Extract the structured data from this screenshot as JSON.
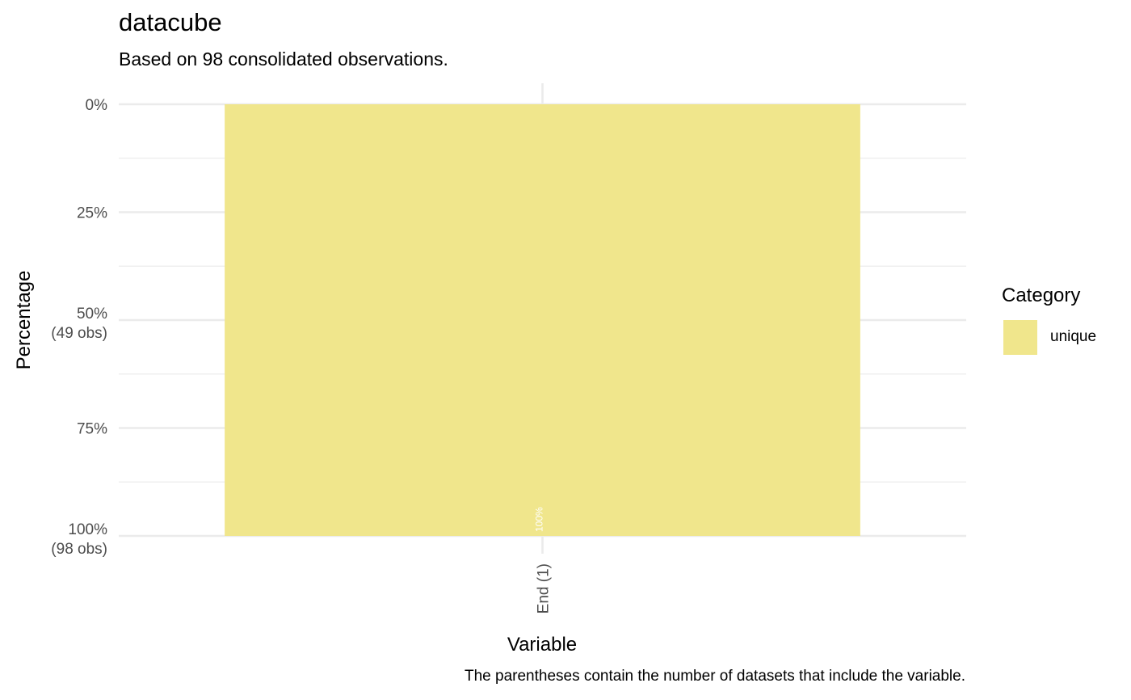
{
  "chart_data": {
    "type": "bar",
    "title": "datacube",
    "subtitle": "Based on 98 consolidated observations.",
    "xlabel": "Variable",
    "ylabel": "Percentage",
    "caption": "The parentheses contain the number of datasets that include the variable.",
    "categories": [
      "End (1)"
    ],
    "series": [
      {
        "name": "unique",
        "values": [
          100
        ],
        "color": "#f0e68c"
      }
    ],
    "y_axis_reversed": true,
    "ylim": [
      0,
      100
    ],
    "yticks": [
      {
        "value": 0,
        "label": "0%",
        "sublabel": ""
      },
      {
        "value": 25,
        "label": "25%",
        "sublabel": ""
      },
      {
        "value": 50,
        "label": "50%",
        "sublabel": "(49 obs)"
      },
      {
        "value": 75,
        "label": "75%",
        "sublabel": ""
      },
      {
        "value": 100,
        "label": "100%",
        "sublabel": "(98 obs)"
      }
    ],
    "data_labels": [
      "100%"
    ],
    "legend": {
      "title": "Category",
      "position": "right",
      "entries": [
        "unique"
      ]
    },
    "grid": true,
    "colors": {
      "bar": "#f0e68c",
      "grid": "#ebebeb",
      "tick_text": "#4d4d4d",
      "data_label": "#ffffff"
    }
  }
}
